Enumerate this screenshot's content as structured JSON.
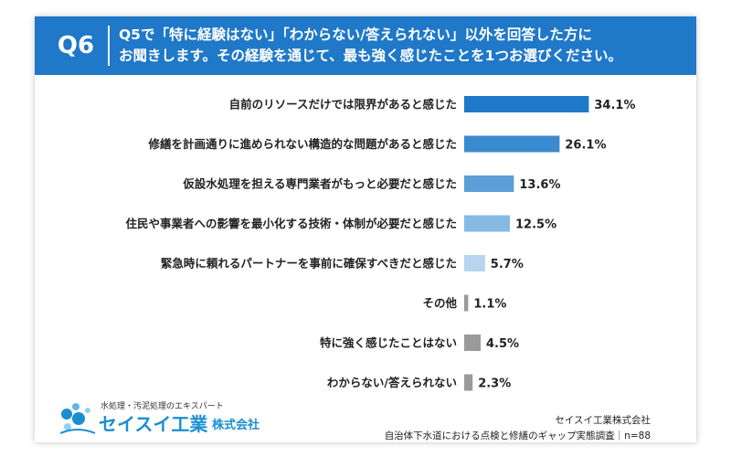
{
  "header": {
    "question_number": "Q6",
    "question_line1": "Q5で「特に経験はない」「わからない/答えられない」以外を回答した方に",
    "question_line2": "お聞きします。その経験を通じて、最も強く感じたことを1つお選びください。"
  },
  "chart_data": {
    "type": "bar",
    "orientation": "horizontal",
    "categories": [
      "自前のリソースだけでは限界があると感じた",
      "修繕を計画通りに進められない構造的な問題があると感じた",
      "仮設水処理を担える専門業者がもっと必要だと感じた",
      "住民や事業者への影響を最小化する技術・体制が必要だと感じた",
      "緊急時に頼れるパートナーを事前に確保すべきだと感じた",
      "その他",
      "特に強く感じたことはない",
      "わからない/答えられない"
    ],
    "values": [
      34.1,
      26.1,
      13.6,
      12.5,
      5.7,
      1.1,
      4.5,
      2.3
    ],
    "value_labels": [
      "34.1%",
      "26.1%",
      "13.6%",
      "12.5%",
      "5.7%",
      "1.1%",
      "4.5%",
      "2.3%"
    ],
    "bar_colors": [
      "#1f78c8",
      "#3a8ad0",
      "#5c9fd8",
      "#86b9e4",
      "#b6d6ef",
      "#9a9a9a",
      "#9a9a9a",
      "#9a9a9a"
    ],
    "unit": "%",
    "xlim": [
      0,
      40
    ],
    "grid": false,
    "legend": "none"
  },
  "logo": {
    "tagline": "水処理・汚泥処理のエキスパート",
    "name": "セイスイ工業",
    "suffix": "株式会社"
  },
  "source": {
    "company": "セイスイ工業株式会社",
    "survey": "自治体下水道における点検と修繕のギャップ実態調査｜n=88"
  }
}
